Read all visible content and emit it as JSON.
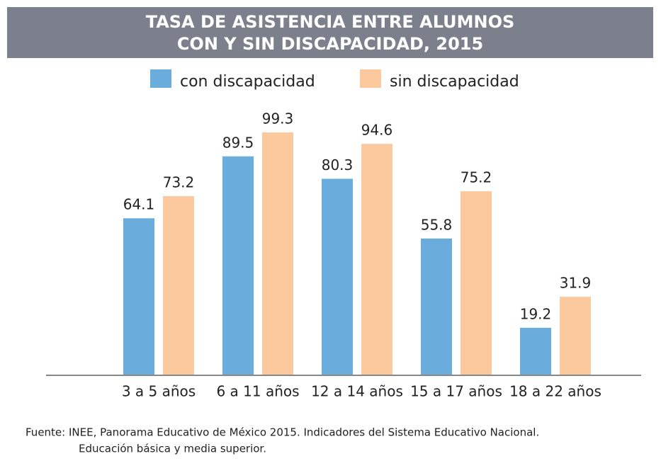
{
  "chart_data": {
    "type": "bar",
    "title": [
      "TASA DE ASISTENCIA ENTRE ALUMNOS",
      "CON Y SIN DISCAPACIDAD, 2015"
    ],
    "categories": [
      "3 a 5 años",
      "6 a 11 años",
      "12 a 14 años",
      "15 a 17 años",
      "18 a 22 años"
    ],
    "series": [
      {
        "name": "con discapacidad",
        "color": "#6aaddd",
        "values": [
          64.1,
          89.5,
          80.3,
          55.8,
          19.2
        ]
      },
      {
        "name": "sin discapacidad",
        "color": "#fbc99d",
        "values": [
          73.2,
          99.3,
          94.6,
          75.2,
          31.9
        ]
      }
    ],
    "ylim": [
      0,
      100
    ],
    "legend": "top",
    "source": [
      "Fuente: INEE, Panorama Educativo de México 2015. Indicadores del Sistema Educativo Nacional.",
      "Educación básica y media superior."
    ]
  }
}
